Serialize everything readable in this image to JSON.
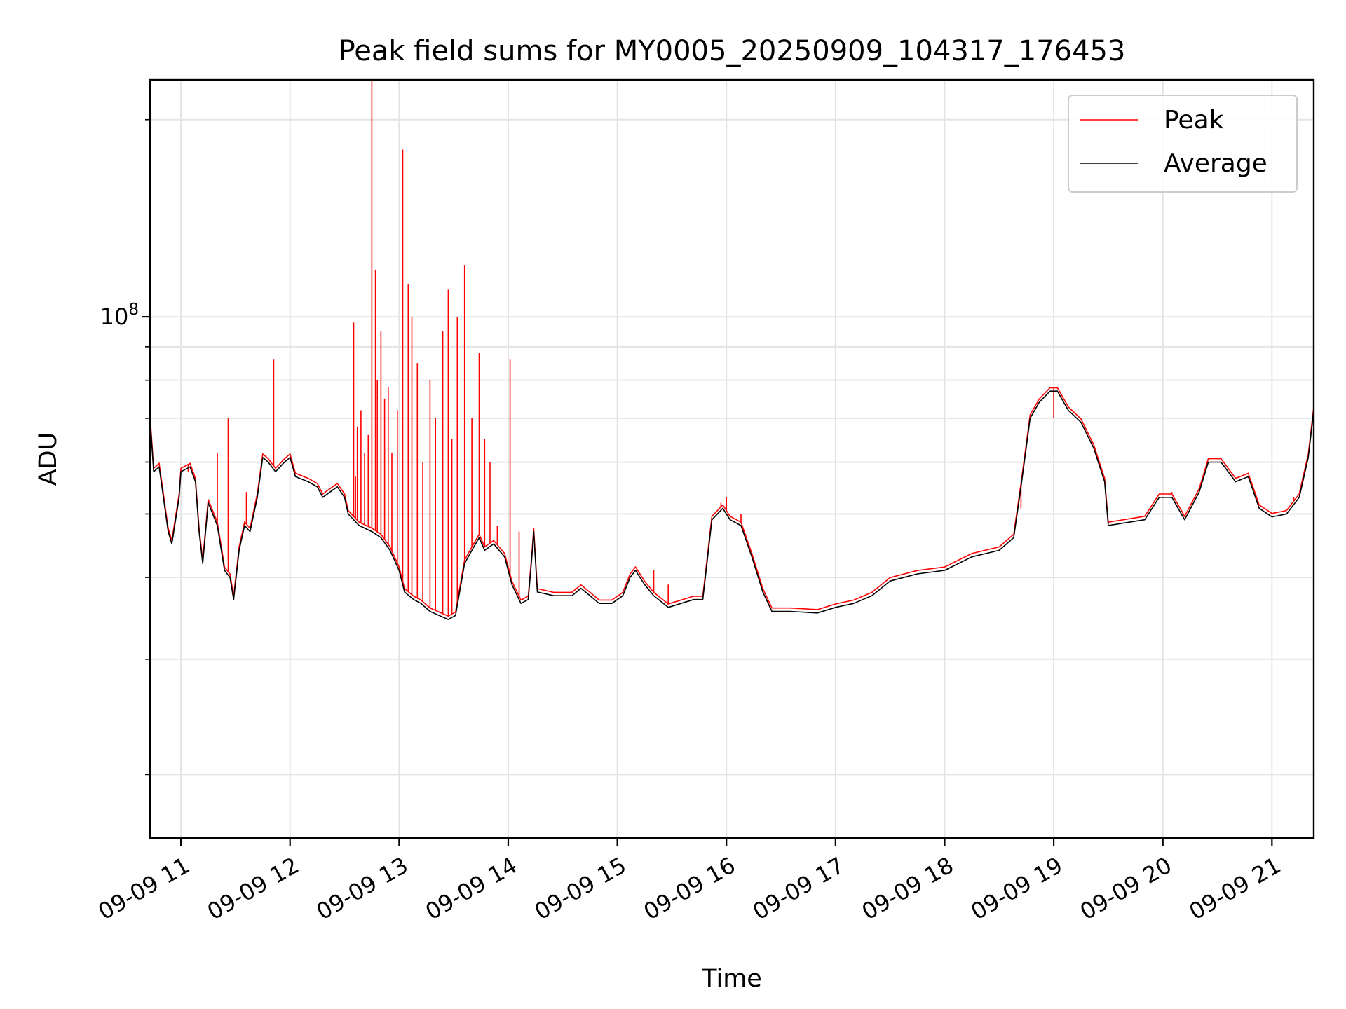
{
  "chart_data": {
    "type": "line",
    "title": "Peak field sums for MY0005_20250909_104317_176453",
    "xlabel": "Time",
    "ylabel": "ADU",
    "y_scale": "log",
    "y_major_tick_label": "10",
    "y_major_tick_exponent": "8",
    "y_major_tick_value": 100000000,
    "y_minor_ticks": [
      20000000,
      30000000,
      40000000,
      50000000,
      60000000,
      70000000,
      80000000,
      90000000,
      200000000
    ],
    "ylim": [
      16000000,
      230000000
    ],
    "xlim": [
      "2025-09-09 10:43",
      "2025-09-09 21:23"
    ],
    "x_ticks": [
      {
        "value": "2025-09-09 11:00",
        "label": "09-09 11"
      },
      {
        "value": "2025-09-09 12:00",
        "label": "09-09 12"
      },
      {
        "value": "2025-09-09 13:00",
        "label": "09-09 13"
      },
      {
        "value": "2025-09-09 14:00",
        "label": "09-09 14"
      },
      {
        "value": "2025-09-09 15:00",
        "label": "09-09 15"
      },
      {
        "value": "2025-09-09 16:00",
        "label": "09-09 16"
      },
      {
        "value": "2025-09-09 17:00",
        "label": "09-09 17"
      },
      {
        "value": "2025-09-09 18:00",
        "label": "09-09 18"
      },
      {
        "value": "2025-09-09 19:00",
        "label": "09-09 19"
      },
      {
        "value": "2025-09-09 20:00",
        "label": "09-09 20"
      },
      {
        "value": "2025-09-09 21:00",
        "label": "09-09 21"
      }
    ],
    "grid": true,
    "legend_position": "top-right",
    "series": [
      {
        "name": "Average",
        "color": "#000000",
        "points": [
          [
            "2025-09-09 10:43",
            70000000
          ],
          [
            "2025-09-09 10:45",
            58000000
          ],
          [
            "2025-09-09 10:48",
            59000000
          ],
          [
            "2025-09-09 10:53",
            47000000
          ],
          [
            "2025-09-09 10:55",
            45000000
          ],
          [
            "2025-09-09 10:59",
            53000000
          ],
          [
            "2025-09-09 11:00",
            58000000
          ],
          [
            "2025-09-09 11:05",
            59000000
          ],
          [
            "2025-09-09 11:08",
            56000000
          ],
          [
            "2025-09-09 11:10",
            47000000
          ],
          [
            "2025-09-09 11:12",
            42000000
          ],
          [
            "2025-09-09 11:15",
            52000000
          ],
          [
            "2025-09-09 11:20",
            48000000
          ],
          [
            "2025-09-09 11:24",
            41000000
          ],
          [
            "2025-09-09 11:27",
            40000000
          ],
          [
            "2025-09-09 11:29",
            37000000
          ],
          [
            "2025-09-09 11:32",
            44000000
          ],
          [
            "2025-09-09 11:35",
            48000000
          ],
          [
            "2025-09-09 11:38",
            47000000
          ],
          [
            "2025-09-09 11:42",
            53000000
          ],
          [
            "2025-09-09 11:45",
            61000000
          ],
          [
            "2025-09-09 11:48",
            60000000
          ],
          [
            "2025-09-09 11:52",
            58000000
          ],
          [
            "2025-09-09 11:57",
            60000000
          ],
          [
            "2025-09-09 12:00",
            61000000
          ],
          [
            "2025-09-09 12:03",
            57000000
          ],
          [
            "2025-09-09 12:10",
            56000000
          ],
          [
            "2025-09-09 12:15",
            55000000
          ],
          [
            "2025-09-09 12:18",
            53000000
          ],
          [
            "2025-09-09 12:22",
            54000000
          ],
          [
            "2025-09-09 12:26",
            55000000
          ],
          [
            "2025-09-09 12:30",
            53000000
          ],
          [
            "2025-09-09 12:32",
            50000000
          ],
          [
            "2025-09-09 12:38",
            48000000
          ],
          [
            "2025-09-09 12:45",
            47000000
          ],
          [
            "2025-09-09 12:50",
            46000000
          ],
          [
            "2025-09-09 12:55",
            44000000
          ],
          [
            "2025-09-09 13:00",
            41000000
          ],
          [
            "2025-09-09 13:03",
            38000000
          ],
          [
            "2025-09-09 13:08",
            37000000
          ],
          [
            "2025-09-09 13:12",
            36500000
          ],
          [
            "2025-09-09 13:17",
            35500000
          ],
          [
            "2025-09-09 13:22",
            35000000
          ],
          [
            "2025-09-09 13:27",
            34500000
          ],
          [
            "2025-09-09 13:31",
            35000000
          ],
          [
            "2025-09-09 13:36",
            42000000
          ],
          [
            "2025-09-09 13:40",
            44000000
          ],
          [
            "2025-09-09 13:44",
            46000000
          ],
          [
            "2025-09-09 13:47",
            44000000
          ],
          [
            "2025-09-09 13:52",
            45000000
          ],
          [
            "2025-09-09 13:58",
            43000000
          ],
          [
            "2025-09-09 14:02",
            39000000
          ],
          [
            "2025-09-09 14:07",
            36500000
          ],
          [
            "2025-09-09 14:11",
            37000000
          ],
          [
            "2025-09-09 14:13",
            43000000
          ],
          [
            "2025-09-09 14:14",
            47000000
          ],
          [
            "2025-09-09 14:16",
            38000000
          ],
          [
            "2025-09-09 14:25",
            37500000
          ],
          [
            "2025-09-09 14:35",
            37500000
          ],
          [
            "2025-09-09 14:40",
            38500000
          ],
          [
            "2025-09-09 14:45",
            37500000
          ],
          [
            "2025-09-09 14:50",
            36500000
          ],
          [
            "2025-09-09 14:57",
            36500000
          ],
          [
            "2025-09-09 15:03",
            37500000
          ],
          [
            "2025-09-09 15:07",
            40000000
          ],
          [
            "2025-09-09 15:10",
            41000000
          ],
          [
            "2025-09-09 15:15",
            39000000
          ],
          [
            "2025-09-09 15:20",
            37500000
          ],
          [
            "2025-09-09 15:28",
            36000000
          ],
          [
            "2025-09-09 15:35",
            36500000
          ],
          [
            "2025-09-09 15:42",
            37000000
          ],
          [
            "2025-09-09 15:47",
            37000000
          ],
          [
            "2025-09-09 15:52",
            49000000
          ],
          [
            "2025-09-09 15:58",
            51000000
          ],
          [
            "2025-09-09 16:02",
            49000000
          ],
          [
            "2025-09-09 16:08",
            48000000
          ],
          [
            "2025-09-09 16:14",
            43000000
          ],
          [
            "2025-09-09 16:20",
            38000000
          ],
          [
            "2025-09-09 16:25",
            35500000
          ],
          [
            "2025-09-09 16:35",
            35500000
          ],
          [
            "2025-09-09 16:50",
            35300000
          ],
          [
            "2025-09-09 17:00",
            36000000
          ],
          [
            "2025-09-09 17:10",
            36500000
          ],
          [
            "2025-09-09 17:20",
            37500000
          ],
          [
            "2025-09-09 17:30",
            39500000
          ],
          [
            "2025-09-09 17:45",
            40500000
          ],
          [
            "2025-09-09 18:00",
            41000000
          ],
          [
            "2025-09-09 18:15",
            43000000
          ],
          [
            "2025-09-09 18:30",
            44000000
          ],
          [
            "2025-09-09 18:38",
            46000000
          ],
          [
            "2025-09-09 18:42",
            55000000
          ],
          [
            "2025-09-09 18:47",
            70000000
          ],
          [
            "2025-09-09 18:52",
            74000000
          ],
          [
            "2025-09-09 18:58",
            77000000
          ],
          [
            "2025-09-09 19:02",
            77000000
          ],
          [
            "2025-09-09 19:08",
            72000000
          ],
          [
            "2025-09-09 19:15",
            69000000
          ],
          [
            "2025-09-09 19:22",
            63000000
          ],
          [
            "2025-09-09 19:28",
            56000000
          ],
          [
            "2025-09-09 19:30",
            48000000
          ],
          [
            "2025-09-09 19:40",
            48500000
          ],
          [
            "2025-09-09 19:50",
            49000000
          ],
          [
            "2025-09-09 19:58",
            53000000
          ],
          [
            "2025-09-09 20:05",
            53000000
          ],
          [
            "2025-09-09 20:12",
            49000000
          ],
          [
            "2025-09-09 20:20",
            54000000
          ],
          [
            "2025-09-09 20:25",
            60000000
          ],
          [
            "2025-09-09 20:32",
            60000000
          ],
          [
            "2025-09-09 20:40",
            56000000
          ],
          [
            "2025-09-09 20:47",
            57000000
          ],
          [
            "2025-09-09 20:53",
            51000000
          ],
          [
            "2025-09-09 21:00",
            49500000
          ],
          [
            "2025-09-09 21:08",
            50000000
          ],
          [
            "2025-09-09 21:15",
            53000000
          ],
          [
            "2025-09-09 21:20",
            61000000
          ],
          [
            "2025-09-09 21:23",
            72000000
          ]
        ]
      },
      {
        "name": "Peak",
        "color": "#ff0000",
        "spikes": [
          [
            "2025-09-09 10:43",
            80000000
          ],
          [
            "2025-09-09 10:52",
            50000000
          ],
          [
            "2025-09-09 11:04",
            58000000
          ],
          [
            "2025-09-09 11:20",
            62000000
          ],
          [
            "2025-09-09 11:26",
            70000000
          ],
          [
            "2025-09-09 11:36",
            54000000
          ],
          [
            "2025-09-09 11:51",
            86000000
          ],
          [
            "2025-09-09 12:36",
            57000000
          ],
          [
            "2025-09-09 12:35",
            98000000
          ],
          [
            "2025-09-09 12:37",
            68000000
          ],
          [
            "2025-09-09 12:39",
            72000000
          ],
          [
            "2025-09-09 12:41",
            62000000
          ],
          [
            "2025-09-09 12:43",
            66000000
          ],
          [
            "2025-09-09 12:45",
            230000000
          ],
          [
            "2025-09-09 12:47",
            118000000
          ],
          [
            "2025-09-09 12:48",
            80000000
          ],
          [
            "2025-09-09 12:50",
            95000000
          ],
          [
            "2025-09-09 12:52",
            75000000
          ],
          [
            "2025-09-09 12:54",
            78000000
          ],
          [
            "2025-09-09 12:56",
            62000000
          ],
          [
            "2025-09-09 12:59",
            72000000
          ],
          [
            "2025-09-09 13:02",
            180000000
          ],
          [
            "2025-09-09 13:05",
            112000000
          ],
          [
            "2025-09-09 13:07",
            100000000
          ],
          [
            "2025-09-09 13:10",
            85000000
          ],
          [
            "2025-09-09 13:13",
            60000000
          ],
          [
            "2025-09-09 13:17",
            80000000
          ],
          [
            "2025-09-09 13:20",
            70000000
          ],
          [
            "2025-09-09 13:24",
            95000000
          ],
          [
            "2025-09-09 13:27",
            110000000
          ],
          [
            "2025-09-09 13:29",
            65000000
          ],
          [
            "2025-09-09 13:32",
            100000000
          ],
          [
            "2025-09-09 13:36",
            120000000
          ],
          [
            "2025-09-09 13:40",
            70000000
          ],
          [
            "2025-09-09 13:44",
            88000000
          ],
          [
            "2025-09-09 13:47",
            65000000
          ],
          [
            "2025-09-09 13:50",
            60000000
          ],
          [
            "2025-09-09 13:54",
            48000000
          ],
          [
            "2025-09-09 14:01",
            86000000
          ],
          [
            "2025-09-09 14:06",
            47000000
          ],
          [
            "2025-09-09 14:37",
            38500000
          ],
          [
            "2025-09-09 15:20",
            41000000
          ],
          [
            "2025-09-09 15:28",
            39000000
          ],
          [
            "2025-09-09 15:57",
            52000000
          ],
          [
            "2025-09-09 16:00",
            53000000
          ],
          [
            "2025-09-09 16:08",
            50000000
          ],
          [
            "2025-09-09 18:42",
            51000000
          ],
          [
            "2025-09-09 19:00",
            70000000
          ],
          [
            "2025-09-09 20:05",
            54000000
          ],
          [
            "2025-09-09 21:12",
            53000000
          ]
        ]
      }
    ]
  }
}
